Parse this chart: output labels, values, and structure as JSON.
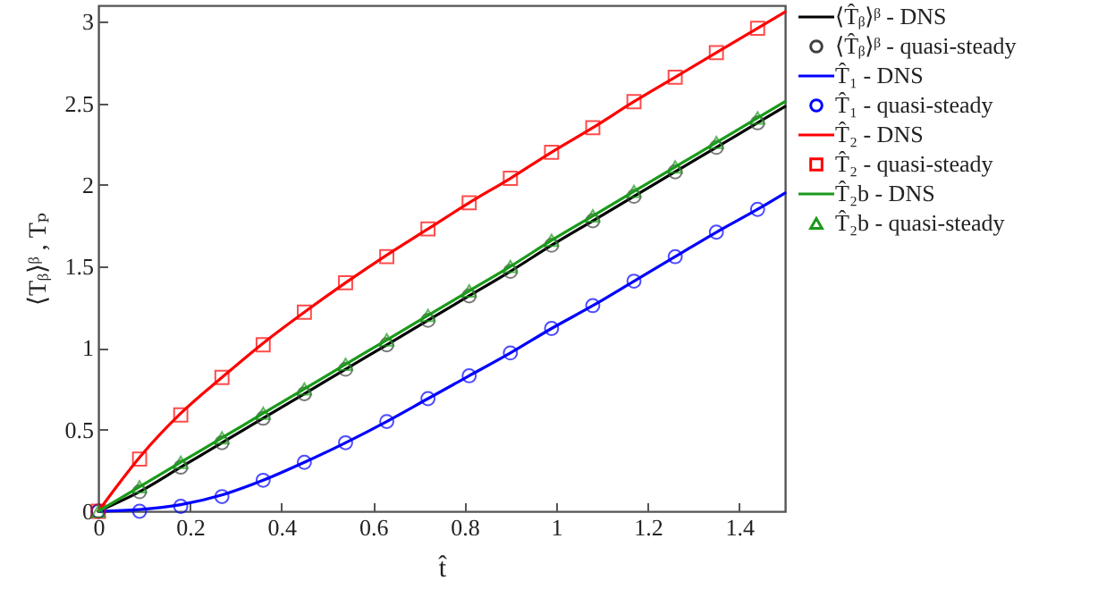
{
  "chart_data": {
    "type": "line",
    "xlabel": "t̂",
    "ylabel": "⟨Tᵦ⟩ᵝ , Tₚ",
    "xlim": [
      0,
      1.5
    ],
    "ylim": [
      0,
      3.1
    ],
    "xticks": [
      0,
      0.2,
      0.4,
      0.6,
      0.8,
      1,
      1.2,
      1.4
    ],
    "yticks": [
      0,
      0.5,
      1,
      1.5,
      2,
      2.5,
      3
    ],
    "grid": false,
    "legend": "top right",
    "line_style": "solid",
    "series": [
      {
        "name": "⟨T̂ᵦ⟩ᵝ - DNS",
        "marker": "none",
        "color": "#000000",
        "x": [
          0,
          0.09,
          0.18,
          0.27,
          0.36,
          0.45,
          0.54,
          0.63,
          0.72,
          0.81,
          0.9,
          0.99,
          1.08,
          1.17,
          1.26,
          1.35,
          1.44,
          1.5
        ],
        "values": [
          0,
          0.12,
          0.27,
          0.42,
          0.57,
          0.72,
          0.87,
          1.02,
          1.17,
          1.32,
          1.47,
          1.63,
          1.78,
          1.93,
          2.08,
          2.23,
          2.38,
          2.48
        ]
      },
      {
        "name": "⟨T̂ᵦ⟩ᵝ - quasi-steady",
        "type": "scatter",
        "marker": "circle",
        "color": "#404040",
        "x": [
          0,
          0.09,
          0.18,
          0.27,
          0.36,
          0.45,
          0.54,
          0.63,
          0.72,
          0.81,
          0.9,
          0.99,
          1.08,
          1.17,
          1.26,
          1.35,
          1.44
        ],
        "values": [
          0,
          0.12,
          0.27,
          0.42,
          0.57,
          0.72,
          0.87,
          1.02,
          1.17,
          1.32,
          1.47,
          1.63,
          1.78,
          1.93,
          2.08,
          2.23,
          2.38
        ]
      },
      {
        "name": "T̂₁ - DNS",
        "marker": "none",
        "color": "#0000ff",
        "x": [
          0,
          0.09,
          0.18,
          0.27,
          0.36,
          0.45,
          0.54,
          0.63,
          0.72,
          0.81,
          0.9,
          0.99,
          1.08,
          1.17,
          1.26,
          1.35,
          1.44,
          1.5
        ],
        "values": [
          0,
          0.01,
          0.04,
          0.1,
          0.19,
          0.3,
          0.42,
          0.55,
          0.69,
          0.83,
          0.97,
          1.12,
          1.26,
          1.41,
          1.56,
          1.71,
          1.85,
          1.95
        ]
      },
      {
        "name": "T̂₁ - quasi-steady",
        "type": "scatter",
        "marker": "circle",
        "color": "#0000ff",
        "x": [
          0,
          0.09,
          0.18,
          0.27,
          0.36,
          0.45,
          0.54,
          0.63,
          0.72,
          0.81,
          0.9,
          0.99,
          1.08,
          1.17,
          1.26,
          1.35,
          1.44
        ],
        "values": [
          0,
          0,
          0.03,
          0.09,
          0.19,
          0.3,
          0.42,
          0.55,
          0.69,
          0.83,
          0.97,
          1.12,
          1.26,
          1.41,
          1.56,
          1.71,
          1.85
        ]
      },
      {
        "name": "T̂₂ - DNS",
        "marker": "none",
        "color": "#ff0000",
        "x": [
          0,
          0.045,
          0.09,
          0.18,
          0.27,
          0.36,
          0.45,
          0.54,
          0.63,
          0.72,
          0.81,
          0.9,
          0.99,
          1.08,
          1.17,
          1.26,
          1.35,
          1.44,
          1.5
        ],
        "values": [
          0,
          0.17,
          0.33,
          0.6,
          0.82,
          1.03,
          1.22,
          1.4,
          1.57,
          1.73,
          1.89,
          2.04,
          2.2,
          2.35,
          2.51,
          2.66,
          2.81,
          2.96,
          3.06
        ]
      },
      {
        "name": "T̂₂ - quasi-steady",
        "type": "scatter",
        "marker": "square",
        "color": "#ff0000",
        "x": [
          0,
          0.09,
          0.18,
          0.27,
          0.36,
          0.45,
          0.54,
          0.63,
          0.72,
          0.81,
          0.9,
          0.99,
          1.08,
          1.17,
          1.26,
          1.35,
          1.44
        ],
        "values": [
          0,
          0.32,
          0.59,
          0.82,
          1.02,
          1.22,
          1.4,
          1.56,
          1.73,
          1.89,
          2.04,
          2.2,
          2.35,
          2.51,
          2.66,
          2.81,
          2.96
        ]
      },
      {
        "name": "T̂₂b - DNS",
        "marker": "none",
        "color": "#1a9a1a",
        "x": [
          0,
          0.09,
          0.18,
          0.27,
          0.36,
          0.45,
          0.54,
          0.63,
          0.72,
          0.81,
          0.9,
          0.99,
          1.08,
          1.17,
          1.26,
          1.35,
          1.44,
          1.5
        ],
        "values": [
          0,
          0.15,
          0.3,
          0.45,
          0.6,
          0.75,
          0.9,
          1.05,
          1.2,
          1.35,
          1.5,
          1.66,
          1.81,
          1.96,
          2.11,
          2.26,
          2.41,
          2.51
        ]
      },
      {
        "name": "T̂₂b - quasi-steady",
        "type": "scatter",
        "marker": "triangle",
        "color": "#1a9a1a",
        "x": [
          0,
          0.09,
          0.18,
          0.27,
          0.36,
          0.45,
          0.54,
          0.63,
          0.72,
          0.81,
          0.9,
          0.99,
          1.08,
          1.17,
          1.26,
          1.35,
          1.44
        ],
        "values": [
          0,
          0.15,
          0.3,
          0.45,
          0.6,
          0.75,
          0.9,
          1.05,
          1.2,
          1.35,
          1.5,
          1.66,
          1.81,
          1.96,
          2.11,
          2.26,
          2.41
        ]
      }
    ]
  }
}
